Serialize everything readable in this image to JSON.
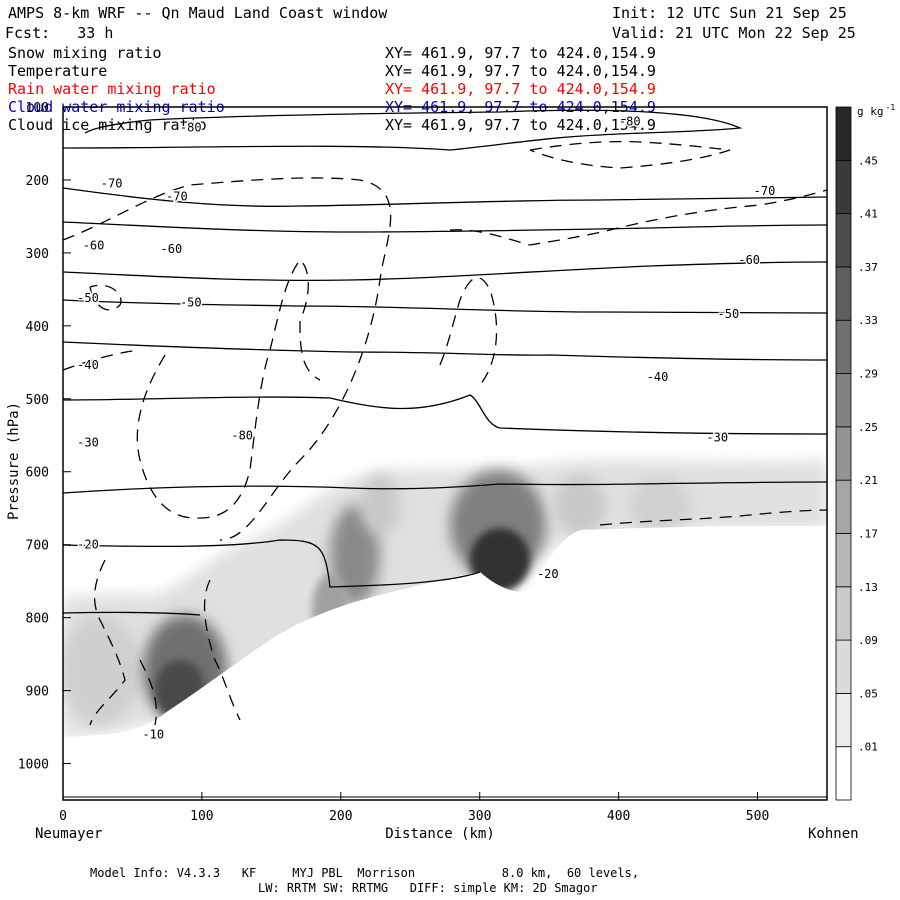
{
  "header": {
    "title": "AMPS 8-km WRF -- Qn Maud Land Coast window",
    "init": "Init: 12 UTC Sun 21 Sep 25",
    "forecast": "Fcst:   33 h",
    "valid": "Valid: 21 UTC Mon 22 Sep 25"
  },
  "legend": [
    {
      "label": "Snow mixing ratio",
      "xy": "XY= 461.9, 97.7 to 424.0,154.9",
      "color": "#000000"
    },
    {
      "label": "Temperature",
      "xy": "XY= 461.9, 97.7 to 424.0,154.9",
      "color": "#000000"
    },
    {
      "label": "Rain water mixing ratio",
      "xy": "XY= 461.9, 97.7 to 424.0,154.9",
      "color": "#ff0000"
    },
    {
      "label": "Cloud water mixing ratio",
      "xy": "XY= 461.9, 97.7 to 424.0,154.9",
      "color": "#0000cc"
    },
    {
      "label": "Cloud ice mixing ratio",
      "xy": "XY= 461.9, 97.7 to 424.0,154.9",
      "color": "#000000"
    }
  ],
  "footer": {
    "line1": "Model Info: V4.3.3   KF     MYJ PBL  Morrison            8.0 km,  60 levels,",
    "line2": "LW: RRTM SW: RRTMG   DIFF: simple KM: 2D Smagor"
  },
  "chart_data": {
    "type": "contour",
    "xlabel": "Distance (km)",
    "ylabel": "Pressure (hPa)",
    "xlim": [
      0,
      550
    ],
    "ylim": [
      1050,
      100
    ],
    "x_ticks": [
      0,
      100,
      200,
      300,
      400,
      500
    ],
    "y_ticks": [
      100,
      200,
      300,
      400,
      500,
      600,
      700,
      800,
      900,
      1000
    ],
    "left_station": "Neumayer",
    "right_station": "Kohnen",
    "colorbar": {
      "unit": "g kg",
      "unit_exp": "-1",
      "tick_labels": [
        ".01",
        ".05",
        ".09",
        ".13",
        ".17",
        ".21",
        ".25",
        ".29",
        ".33",
        ".37",
        ".41",
        ".45"
      ]
    },
    "temperature_labels": [
      {
        "text": "-80",
        "x": 92,
        "p": 128
      },
      {
        "text": "-80",
        "x": 408,
        "p": 120
      },
      {
        "text": "-70",
        "x": 35,
        "p": 205
      },
      {
        "text": "-70",
        "x": 82,
        "p": 223
      },
      {
        "text": "-70",
        "x": 505,
        "p": 215
      },
      {
        "text": "-60",
        "x": 22,
        "p": 290
      },
      {
        "text": "-60",
        "x": 78,
        "p": 295
      },
      {
        "text": "-60",
        "x": 494,
        "p": 310
      },
      {
        "text": "-50",
        "x": 18,
        "p": 362
      },
      {
        "text": "-50",
        "x": 92,
        "p": 368
      },
      {
        "text": "-50",
        "x": 479,
        "p": 384
      },
      {
        "text": "-40",
        "x": 18,
        "p": 454
      },
      {
        "text": "-40",
        "x": 428,
        "p": 470
      },
      {
        "text": "-30",
        "x": 18,
        "p": 560
      },
      {
        "text": "-30",
        "x": 471,
        "p": 553
      },
      {
        "text": "-20",
        "x": 18,
        "p": 700
      },
      {
        "text": "-20",
        "x": 349,
        "p": 740
      },
      {
        "text": "-10",
        "x": 65,
        "p": 960
      },
      {
        "text": "-80",
        "x": 129,
        "p": 550
      }
    ]
  }
}
